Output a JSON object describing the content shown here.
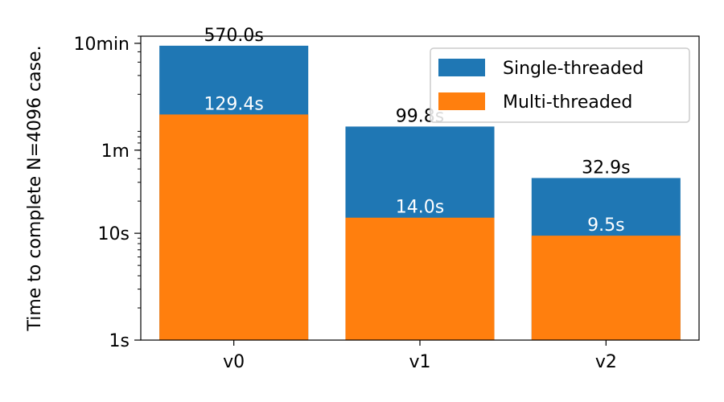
{
  "chart_data": {
    "type": "bar",
    "scale": "log",
    "title": "",
    "xlabel": "",
    "ylabel": "Time to complete N=4096 case.",
    "categories": [
      "v0",
      "v1",
      "v2"
    ],
    "ylim": [
      1,
      700
    ],
    "yticks": [
      {
        "value": 1,
        "label": "1s"
      },
      {
        "value": 10,
        "label": "10s"
      },
      {
        "value": 60,
        "label": "1m"
      },
      {
        "value": 600,
        "label": "10min"
      }
    ],
    "series": [
      {
        "name": "Single-threaded",
        "color": "#1f77b4",
        "values": [
          570.0,
          99.8,
          32.9
        ],
        "labels": [
          "570.0s",
          "99.8s",
          "32.9s"
        ]
      },
      {
        "name": "Multi-threaded",
        "color": "#ff7f0e",
        "values": [
          129.4,
          14.0,
          9.5
        ],
        "labels": [
          "129.4s",
          "14.0s",
          "9.5s"
        ]
      }
    ],
    "legend_position": "top-right",
    "grid": false
  }
}
